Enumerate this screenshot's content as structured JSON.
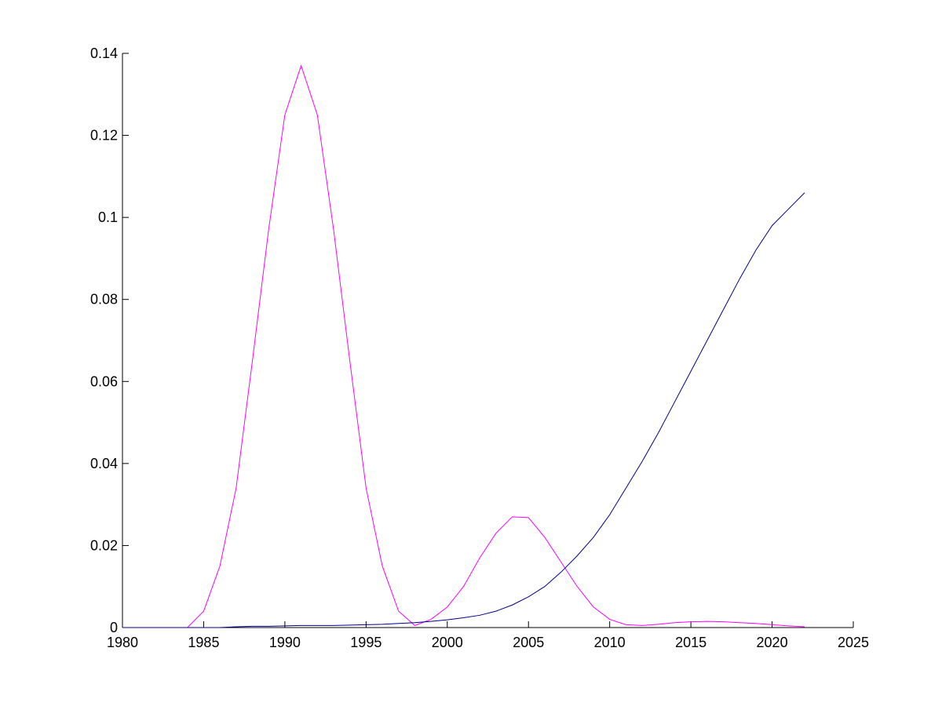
{
  "chart_data": {
    "type": "line",
    "x": [
      1980,
      1981,
      1982,
      1983,
      1984,
      1985,
      1986,
      1987,
      1988,
      1989,
      1990,
      1991,
      1992,
      1993,
      1994,
      1995,
      1996,
      1997,
      1998,
      1999,
      2000,
      2001,
      2002,
      2003,
      2004,
      2005,
      2006,
      2007,
      2008,
      2009,
      2010,
      2011,
      2012,
      2013,
      2014,
      2015,
      2016,
      2017,
      2018,
      2019,
      2020,
      2021,
      2022
    ],
    "series": [
      {
        "color": "#ff00ff",
        "values": [
          0,
          0,
          0,
          0,
          0,
          0.004,
          0.015,
          0.034,
          0.065,
          0.097,
          0.125,
          0.137,
          0.125,
          0.097,
          0.065,
          0.034,
          0.015,
          0.004,
          0.0005,
          0.002,
          0.005,
          0.01,
          0.017,
          0.023,
          0.027,
          0.0268,
          0.022,
          0.016,
          0.01,
          0.005,
          0.002,
          0.0007,
          0.0005,
          0.0008,
          0.0012,
          0.0014,
          0.0015,
          0.0014,
          0.0012,
          0.001,
          0.0007,
          0.0004,
          0.0002
        ]
      },
      {
        "color": "#00008b",
        "values": [
          0,
          0,
          0,
          0,
          0,
          0,
          0,
          0.0002,
          0.0003,
          0.0003,
          0.0004,
          0.0005,
          0.0005,
          0.0005,
          0.0006,
          0.0007,
          0.0008,
          0.001,
          0.0012,
          0.0015,
          0.0019,
          0.0024,
          0.003,
          0.004,
          0.0055,
          0.0075,
          0.01,
          0.0135,
          0.0175,
          0.022,
          0.0275,
          0.034,
          0.0405,
          0.0475,
          0.055,
          0.0625,
          0.07,
          0.0775,
          0.085,
          0.092,
          0.098,
          0.102,
          0.106
        ]
      }
    ],
    "xlim": [
      1980,
      2025
    ],
    "xticks": [
      1980,
      1985,
      1990,
      1995,
      2000,
      2005,
      2010,
      2015,
      2020,
      2025
    ],
    "ylim": [
      0,
      0.14
    ],
    "yticks": [
      0,
      0.02,
      0.04,
      0.06,
      0.08,
      0.1,
      0.12,
      0.14
    ]
  }
}
